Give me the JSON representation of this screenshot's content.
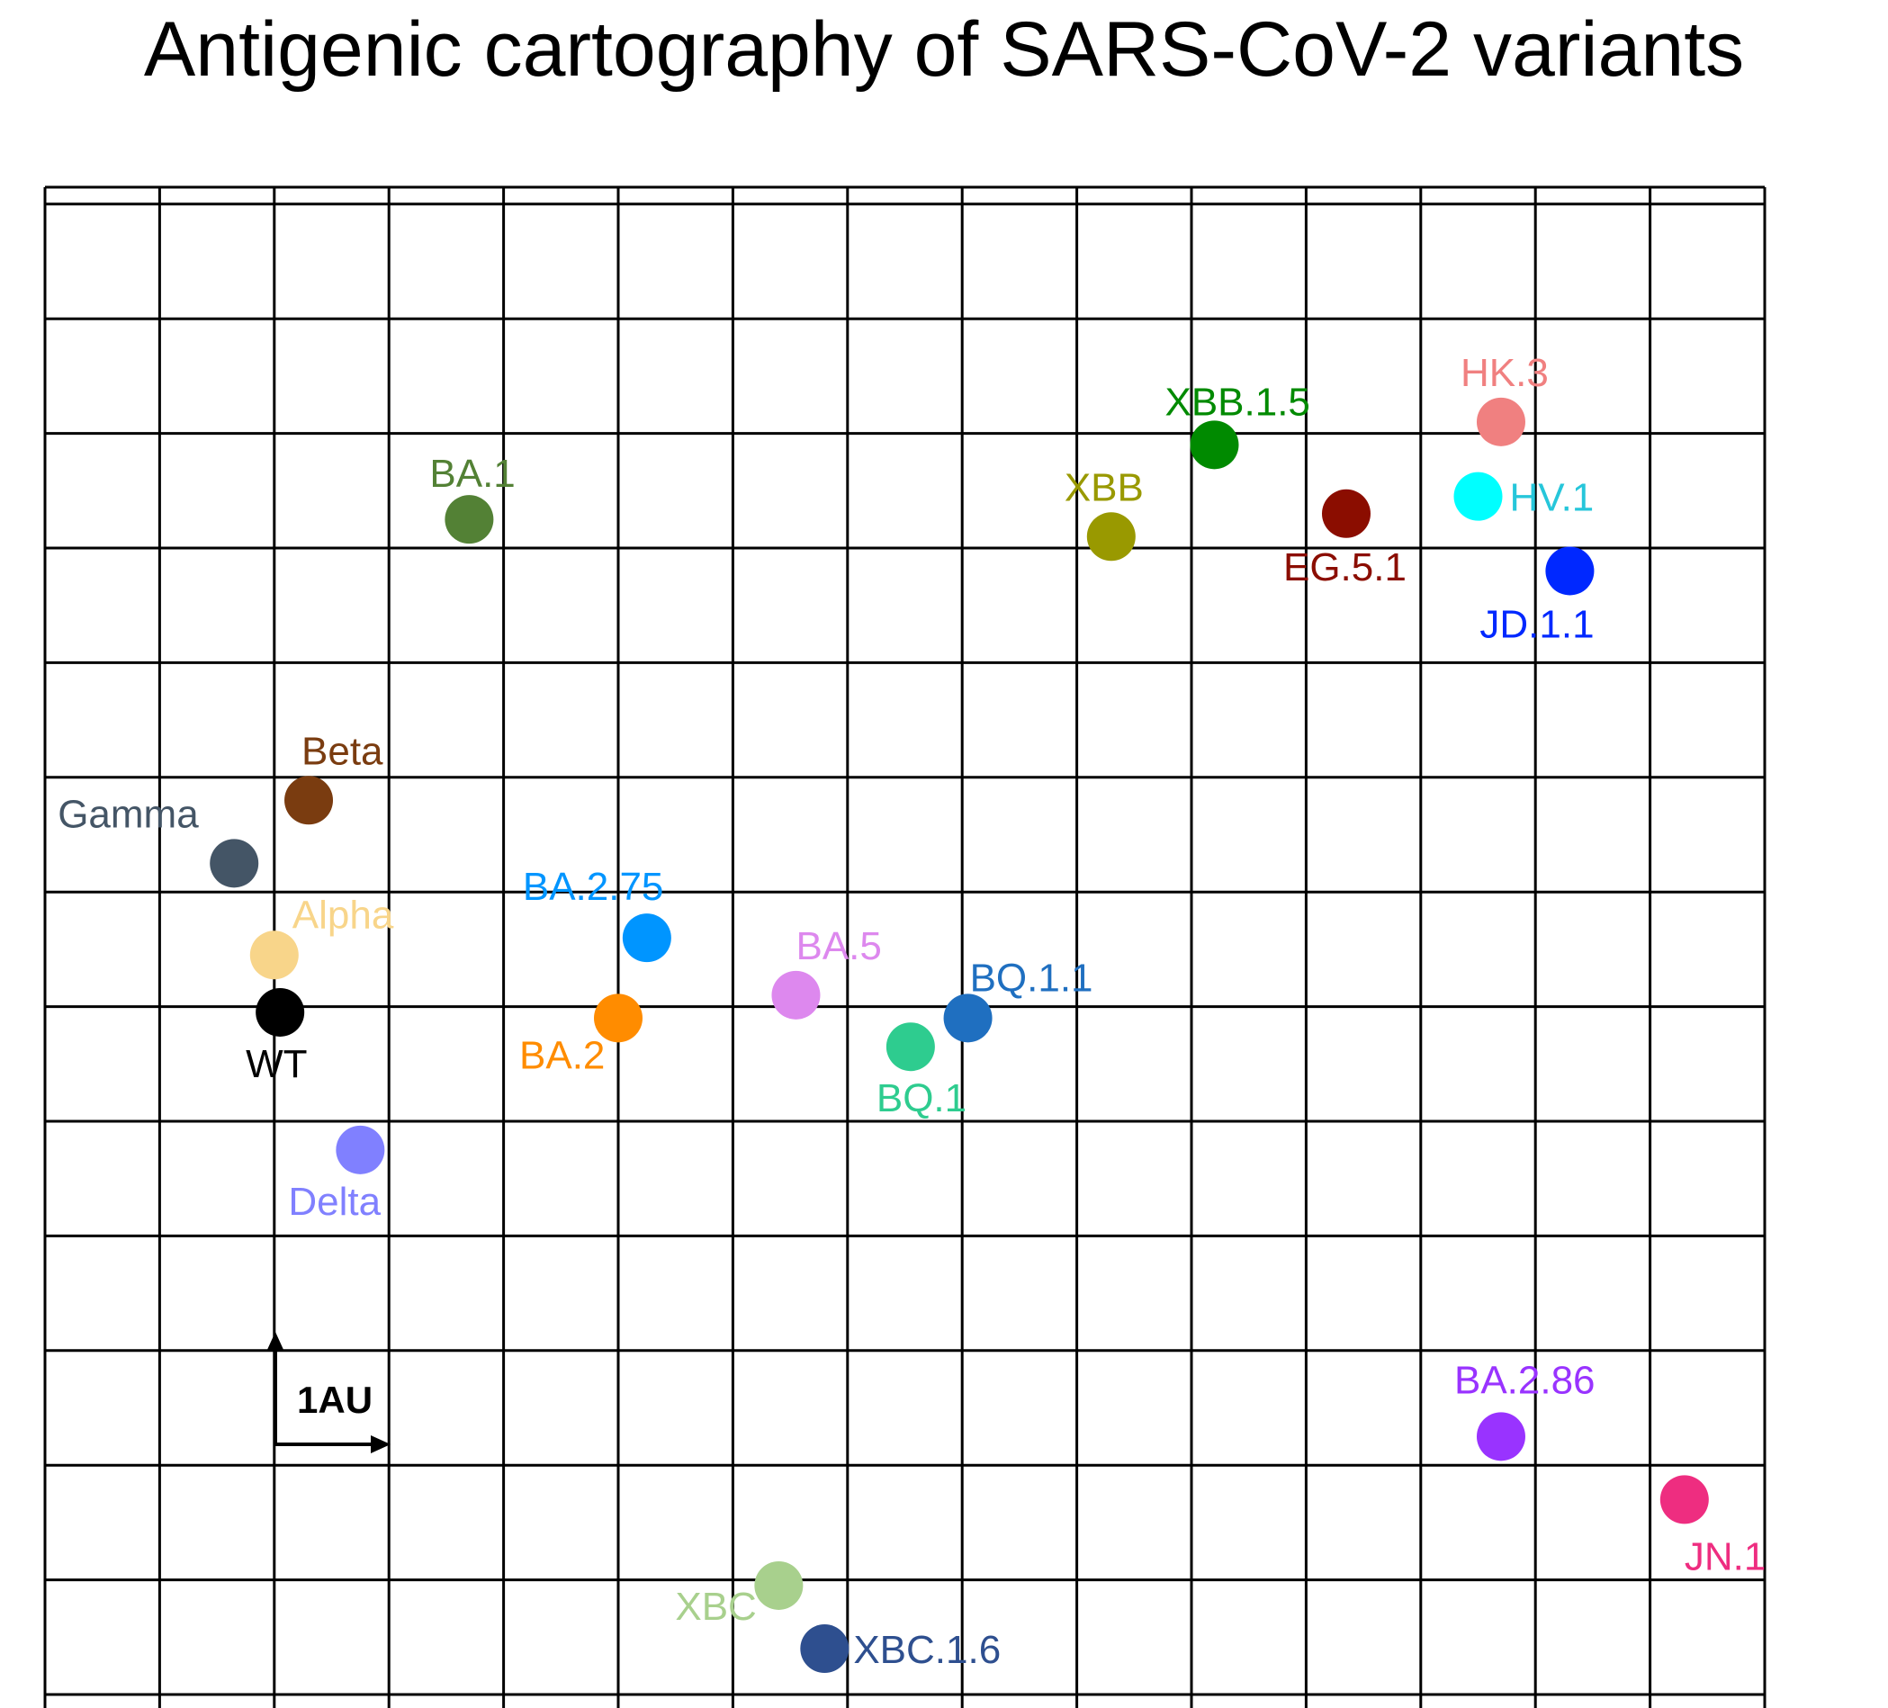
{
  "chart_data": {
    "type": "scatter",
    "title": "Antigenic cartography of SARS-CoV-2 variants",
    "xlabel": "",
    "ylabel": "",
    "grid": true,
    "grid_unit_au": 1,
    "scale_bar_label": "1AU",
    "xlim": [
      0,
      15
    ],
    "ylim": [
      0,
      13.2
    ],
    "points": [
      {
        "label": "BA.1",
        "x": 3.7,
        "y": 10.25,
        "color": "#538135",
        "label_color": "#538135"
      },
      {
        "label": "XBB",
        "x": 9.3,
        "y": 10.1,
        "color": "#999900",
        "label_color": "#999900"
      },
      {
        "label": "XBB.1.5",
        "x": 10.2,
        "y": 10.9,
        "color": "#008a00",
        "label_color": "#008a00"
      },
      {
        "label": "EG.5.1",
        "x": 11.35,
        "y": 10.3,
        "color": "#8b0d00",
        "label_color": "#8b0d00"
      },
      {
        "label": "HK.3",
        "x": 12.7,
        "y": 11.1,
        "color": "#f08080",
        "label_color": "#f08080"
      },
      {
        "label": "HV.1",
        "x": 12.5,
        "y": 10.45,
        "color": "#00ffff",
        "label_color": "#26c6da"
      },
      {
        "label": "JD.1.1",
        "x": 13.3,
        "y": 9.8,
        "color": "#0028ff",
        "label_color": "#0028ff"
      },
      {
        "label": "Beta",
        "x": 2.3,
        "y": 7.8,
        "color": "#7a3c10",
        "label_color": "#7a3c10"
      },
      {
        "label": "Gamma",
        "x": 1.65,
        "y": 7.25,
        "color": "#445566",
        "label_color": "#445566"
      },
      {
        "label": "Alpha",
        "x": 2.0,
        "y": 6.45,
        "color": "#f8d58a",
        "label_color": "#f8d58a"
      },
      {
        "label": "WT",
        "x": 2.05,
        "y": 5.95,
        "color": "#000000",
        "label_color": "#000000"
      },
      {
        "label": "Delta",
        "x": 2.75,
        "y": 4.75,
        "color": "#8080ff",
        "label_color": "#8080ff"
      },
      {
        "label": "BA.2.75",
        "x": 5.25,
        "y": 6.6,
        "color": "#0095ff",
        "label_color": "#0095ff"
      },
      {
        "label": "BA.2",
        "x": 5.0,
        "y": 5.9,
        "color": "#ff8c00",
        "label_color": "#ff8c00"
      },
      {
        "label": "BA.5",
        "x": 6.55,
        "y": 6.1,
        "color": "#dd88ee",
        "label_color": "#dd88ee"
      },
      {
        "label": "BQ.1",
        "x": 7.55,
        "y": 5.65,
        "color": "#2ecc8f",
        "label_color": "#2ecc8f"
      },
      {
        "label": "BQ.1.1",
        "x": 8.05,
        "y": 5.9,
        "color": "#1f6fc0",
        "label_color": "#1f6fc0"
      },
      {
        "label": "BA.2.86",
        "x": 12.7,
        "y": 2.25,
        "color": "#9933ff",
        "label_color": "#9933ff"
      },
      {
        "label": "JN.1",
        "x": 14.3,
        "y": 1.7,
        "color": "#ee2d80",
        "label_color": "#ee2d80"
      },
      {
        "label": "XBC",
        "x": 6.4,
        "y": 0.95,
        "color": "#a8d08d",
        "label_color": "#a8d08d"
      },
      {
        "label": "XBC.1.6",
        "x": 6.8,
        "y": 0.4,
        "color": "#2e4f8f",
        "label_color": "#2e4f8f"
      }
    ]
  }
}
